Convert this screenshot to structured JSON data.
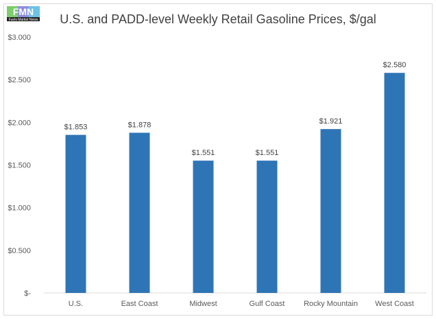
{
  "logo": {
    "text": "Fuels Market News",
    "letters": "FMN"
  },
  "chart_data": {
    "type": "bar",
    "title": "U.S. and PADD-level Weekly Retail Gasoline Prices, $/gal",
    "categories": [
      "U.S.",
      "East Coast",
      "Midwest",
      "Gulf Coast",
      "Rocky Mountain",
      "West Coast"
    ],
    "values": [
      1.853,
      1.878,
      1.551,
      1.551,
      1.921,
      2.58
    ],
    "data_labels": [
      "$1.853",
      "$1.878",
      "$1.551",
      "$1.551",
      "$1.921",
      "$2.580"
    ],
    "yticks": [
      0,
      0.5,
      1,
      1.5,
      2,
      2.5,
      3
    ],
    "ytick_labels": [
      "$-",
      "$0.500",
      "$1.000",
      "$1.500",
      "$2.000",
      "$2.500",
      "$3.000"
    ],
    "ylim": [
      0,
      3
    ],
    "xlabel": "",
    "ylabel": "",
    "grid": false,
    "bar_color": "#2E75B6"
  }
}
